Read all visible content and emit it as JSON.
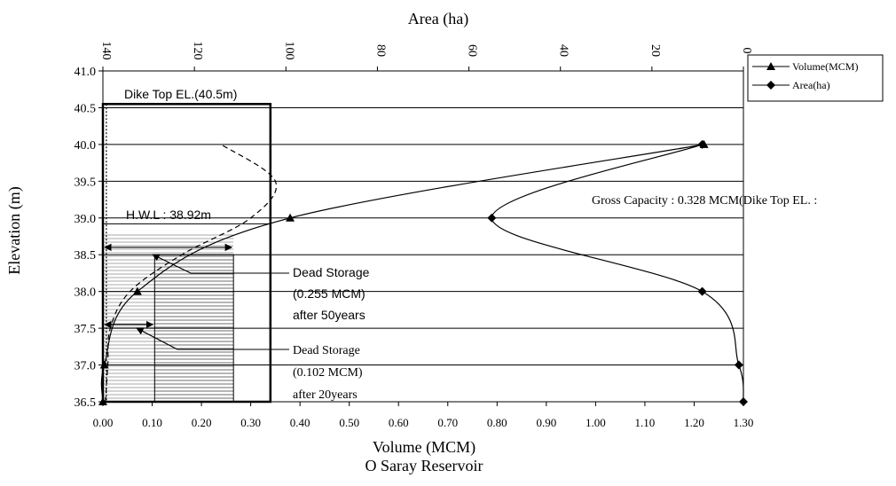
{
  "chart_data": {
    "type": "line",
    "title": "O Saray Reservoir",
    "xlabel": "Volume (MCM)",
    "x2label": "Area (ha)",
    "ylabel": "Elevation (m)",
    "xlim": [
      0,
      1.3
    ],
    "x2lim": [
      140,
      0
    ],
    "ylim": [
      36.5,
      41.0
    ],
    "x_ticks": [
      "0.00",
      "0.10",
      "0.20",
      "0.30",
      "0.40",
      "0.50",
      "0.60",
      "0.70",
      "0.80",
      "0.90",
      "1.00",
      "1.10",
      "1.20",
      "1.30"
    ],
    "x2_ticks": [
      "140",
      "120",
      "100",
      "80",
      "60",
      "40",
      "20",
      "0"
    ],
    "y_ticks": [
      "36.5",
      "37.0",
      "37.5",
      "38.0",
      "38.5",
      "39.0",
      "39.5",
      "40.0",
      "40.5",
      "41.0"
    ],
    "grid": "horizontal",
    "legend_position": "top-right",
    "series": [
      {
        "name": "Volume(MCM)",
        "axis": "bottom",
        "marker": "triangle",
        "elevation": [
          36.5,
          37.0,
          38.0,
          39.0,
          40.0
        ],
        "volume": [
          0.0,
          0.003,
          0.07,
          0.38,
          1.22
        ]
      },
      {
        "name": "Area(ha)",
        "axis": "top",
        "marker": "diamond",
        "elevation": [
          40.0,
          39.0,
          38.0,
          37.0,
          36.5
        ],
        "area": [
          9,
          55,
          9,
          1,
          0
        ]
      }
    ],
    "sediment_curve": {
      "elevation": [
        36.5,
        37.0,
        37.5,
        38.0,
        38.5,
        39.0,
        39.5,
        40.0
      ],
      "volume": [
        0.005,
        0.01,
        0.015,
        0.055,
        0.16,
        0.3,
        0.35,
        0.24
      ]
    },
    "annotations": {
      "dike_top": "Dike Top EL.(40.5m)",
      "hwl": "H.W.L : 38.92m",
      "gross_capacity": "Gross Capacity : 0.328 MCM(Dike Top EL. :",
      "dead_storage_50_title": "Dead Storage",
      "dead_storage_50_value": "(0.255 MCM)",
      "dead_storage_50_period": "after 50years",
      "dead_storage_20_title": "Dead Storage",
      "dead_storage_20_value": "(0.102 MCM)",
      "dead_storage_20_period": "after 20years"
    },
    "zones": {
      "dike_box": {
        "x": [
          0,
          0.34
        ],
        "y": [
          36.5,
          40.55
        ]
      },
      "dead_50": {
        "x": [
          0,
          0.265
        ],
        "y": [
          36.5,
          38.78
        ]
      },
      "dead_20": {
        "x": [
          0.105,
          0.265
        ],
        "y": [
          36.5,
          38.5
        ]
      },
      "hwl_level": 38.92
    },
    "colors": {
      "line": "#000000",
      "grid": "#000000",
      "hatch": "#9a9a9a"
    }
  }
}
